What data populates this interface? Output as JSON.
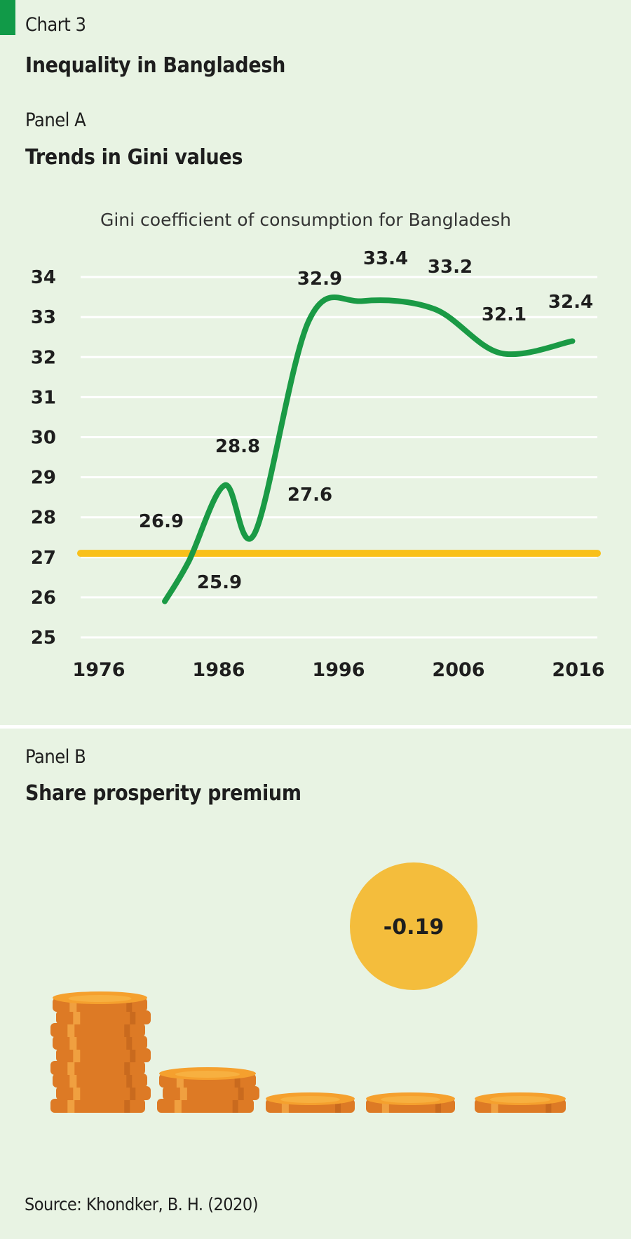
{
  "header": {
    "kicker": "Chart 3",
    "title": "Inequality in Bangladesh"
  },
  "panel_a": {
    "kicker": "Panel A",
    "title": "Trends in Gini values"
  },
  "panel_b": {
    "kicker": "Panel B",
    "title": "Share prosperity premium",
    "premium_value": "-0.19",
    "coin_stacks": [
      9,
      3,
      1,
      1,
      1
    ]
  },
  "source": "Source: Khondker, B. H. (2020)",
  "colors": {
    "background": "#e8f3e3",
    "accent": "#119a48",
    "line": "#1a9a45",
    "reference_line": "#f9c01a",
    "gridline": "#ffffff",
    "premium_circle": "#f4bd3c",
    "coin_top": "#f5a02e",
    "coin_side": "#dd7a25"
  },
  "chart_data": {
    "type": "line",
    "title": "Gini coefficient of consumption for Bangladesh",
    "xlabel": "",
    "ylabel": "",
    "xlim": [
      1976,
      2016
    ],
    "ylim": [
      25,
      34
    ],
    "x_ticks": [
      "1976",
      "1986",
      "1996",
      "2006",
      "2016"
    ],
    "y_ticks": [
      "25",
      "26",
      "27",
      "28",
      "29",
      "30",
      "31",
      "32",
      "33",
      "34"
    ],
    "grid": true,
    "reference_line": 27.1,
    "series": [
      {
        "x": [
          1981.5,
          1983.5,
          1986.5,
          1989,
          1993.5,
          1998,
          2004,
          2009.5,
          2015.5
        ],
        "y": [
          25.9,
          26.9,
          28.8,
          27.6,
          32.9,
          33.4,
          33.2,
          32.1,
          32.4
        ],
        "labels": [
          "25.9",
          "26.9",
          "28.8",
          "27.6",
          "32.9",
          "33.4",
          "33.2",
          "32.1",
          "32.4"
        ]
      }
    ]
  }
}
